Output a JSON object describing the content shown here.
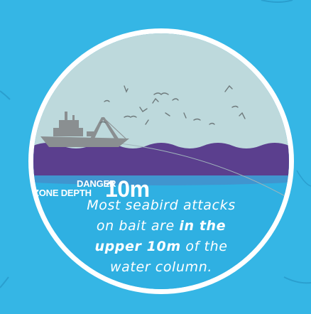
{
  "danger_label": {
    "line1": "DANGER",
    "line2": "ZONE DEPTH",
    "depth": "10m"
  },
  "message": {
    "line1": "Most seabird attacks",
    "line2_start": "on bait are ",
    "line2_bold": "in the",
    "line3_bold": "upper 10m",
    "line3_end": " of the",
    "line4": "water column."
  },
  "colors": {
    "background": "#35b6e5",
    "sky": "#bdd9dc",
    "danger_band": "#5b3f8e",
    "water": "#2fb0e2",
    "ship": "#8a8f91"
  },
  "icons": [
    "fishing-boat-icon",
    "seabird-icon"
  ]
}
